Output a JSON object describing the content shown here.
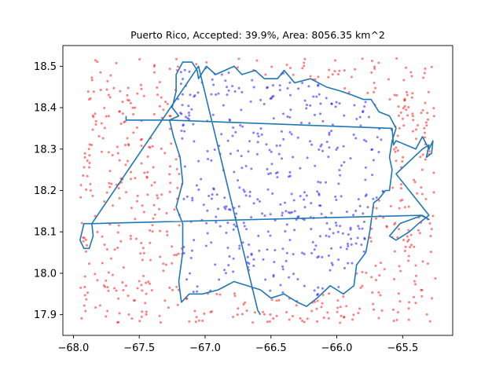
{
  "chart_data": {
    "type": "scatter",
    "title": "Puerto Rico, Accepted: 39.9%, Area: 8056.35 km^2",
    "xlabel": "",
    "ylabel": "",
    "xlim": [
      -68.08,
      -65.12
    ],
    "ylim": [
      17.85,
      18.55
    ],
    "x_ticks": [
      -68.0,
      -67.5,
      -67.0,
      -66.5,
      -66.0,
      -65.5
    ],
    "x_tick_labels": [
      "−68.0",
      "−67.5",
      "−67.0",
      "−66.5",
      "−66.0",
      "−65.5"
    ],
    "y_ticks": [
      17.9,
      18.0,
      18.1,
      18.2,
      18.3,
      18.4,
      18.5
    ],
    "y_tick_labels": [
      "17.9",
      "18.0",
      "18.1",
      "18.2",
      "18.3",
      "18.4",
      "18.5"
    ],
    "grid": false,
    "colors": {
      "outline": "#1f77b4",
      "accepted": "#0000ff",
      "rejected": "#ff0000",
      "axes": "#000000"
    },
    "sample_bounds": {
      "x": [
        -67.95,
        -65.25
      ],
      "y": [
        17.88,
        18.52
      ]
    },
    "sample_count": 1000,
    "accepted_fraction": 0.399,
    "outline": [
      [
        -67.6,
        18.38
      ],
      [
        -67.6,
        18.37
      ],
      [
        -67.27,
        18.37
      ],
      [
        -67.2,
        18.38
      ],
      [
        -67.25,
        18.4
      ],
      [
        -67.22,
        18.44
      ],
      [
        -67.22,
        18.48
      ],
      [
        -67.17,
        18.51
      ],
      [
        -67.1,
        18.51
      ],
      [
        -67.06,
        18.49
      ],
      [
        -67.05,
        18.47
      ],
      [
        -66.99,
        18.5
      ],
      [
        -66.92,
        18.48
      ],
      [
        -66.85,
        18.49
      ],
      [
        -66.78,
        18.5
      ],
      [
        -66.72,
        18.48
      ],
      [
        -66.62,
        18.49
      ],
      [
        -66.55,
        18.47
      ],
      [
        -66.45,
        18.47
      ],
      [
        -66.4,
        18.49
      ],
      [
        -66.32,
        18.46
      ],
      [
        -66.2,
        18.47
      ],
      [
        -66.08,
        18.45
      ],
      [
        -65.97,
        18.44
      ],
      [
        -65.88,
        18.43
      ],
      [
        -65.8,
        18.42
      ],
      [
        -65.74,
        18.42
      ],
      [
        -65.68,
        18.39
      ],
      [
        -65.6,
        18.38
      ],
      [
        -65.55,
        18.35
      ],
      [
        -65.58,
        18.32
      ],
      [
        -65.6,
        18.28
      ],
      [
        -65.58,
        18.25
      ],
      [
        -65.6,
        18.2
      ],
      [
        -65.63,
        18.2
      ],
      [
        -65.68,
        18.18
      ],
      [
        -65.72,
        18.17
      ],
      [
        -65.75,
        18.1
      ],
      [
        -65.78,
        18.05
      ],
      [
        -65.85,
        18.02
      ],
      [
        -65.87,
        17.97
      ],
      [
        -65.95,
        17.95
      ],
      [
        -66.05,
        17.97
      ],
      [
        -66.15,
        17.94
      ],
      [
        -66.23,
        17.92
      ],
      [
        -66.3,
        17.93
      ],
      [
        -66.4,
        17.95
      ],
      [
        -66.5,
        17.94
      ],
      [
        -66.58,
        17.96
      ],
      [
        -66.68,
        17.97
      ],
      [
        -66.78,
        17.98
      ],
      [
        -66.9,
        17.96
      ],
      [
        -67.02,
        17.95
      ],
      [
        -67.12,
        17.95
      ],
      [
        -67.18,
        17.93
      ],
      [
        -67.2,
        17.98
      ],
      [
        -67.17,
        18.05
      ],
      [
        -67.17,
        18.12
      ],
      [
        -67.22,
        18.16
      ],
      [
        -67.17,
        18.22
      ],
      [
        -67.19,
        18.28
      ],
      [
        -67.24,
        18.33
      ],
      [
        -67.27,
        18.37
      ],
      [
        -65.58,
        18.35
      ],
      [
        -65.57,
        18.31
      ],
      [
        -65.55,
        18.32
      ],
      [
        -65.4,
        18.3
      ],
      [
        -65.35,
        18.33
      ],
      [
        -65.3,
        18.3
      ],
      [
        -65.27,
        18.32
      ],
      [
        -65.28,
        18.29
      ],
      [
        -65.32,
        18.28
      ],
      [
        -65.3,
        18.31
      ],
      [
        -65.35,
        18.3
      ],
      [
        -65.55,
        18.24
      ],
      [
        -65.3,
        18.14
      ],
      [
        -65.38,
        18.12
      ],
      [
        -65.45,
        18.1
      ],
      [
        -65.55,
        18.08
      ],
      [
        -65.6,
        18.09
      ],
      [
        -65.52,
        18.12
      ],
      [
        -65.35,
        18.14
      ],
      [
        -65.3,
        18.13
      ],
      [
        -65.36,
        18.14
      ],
      [
        -67.85,
        18.12
      ],
      [
        -67.92,
        18.12
      ],
      [
        -67.95,
        18.08
      ],
      [
        -67.92,
        18.06
      ],
      [
        -67.88,
        18.06
      ],
      [
        -67.85,
        18.09
      ],
      [
        -67.86,
        18.12
      ],
      [
        -67.05,
        18.5
      ],
      [
        -66.6,
        17.91
      ],
      [
        -66.58,
        17.9
      ]
    ]
  }
}
